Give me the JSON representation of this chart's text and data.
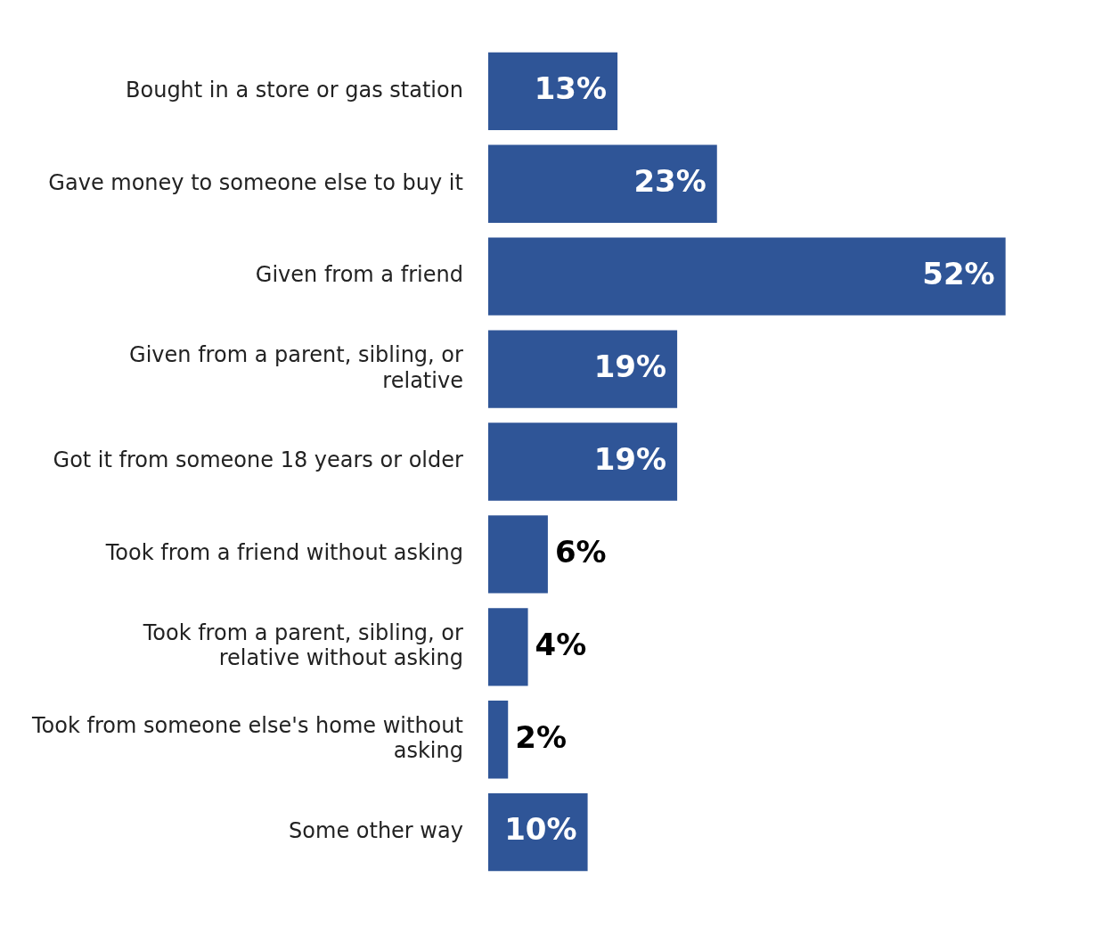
{
  "chart_data": {
    "type": "bar",
    "orientation": "horizontal",
    "categories": [
      "Bought in a store or gas station",
      "Gave money to someone else to buy it",
      "Given from a friend",
      "Given from a parent, sibling, or relative",
      "Got it from someone 18 years or older",
      "Took from a friend without asking",
      "Took from a parent, sibling, or relative without asking",
      "Took from someone else's home without asking",
      "Some other way"
    ],
    "values": [
      13,
      23,
      52,
      19,
      19,
      6,
      4,
      2,
      10
    ],
    "value_labels": [
      "13%",
      "23%",
      "52%",
      "19%",
      "19%",
      "6%",
      "4%",
      "2%",
      "10%"
    ],
    "color": "#2f5597",
    "grid": false,
    "legend": false
  }
}
